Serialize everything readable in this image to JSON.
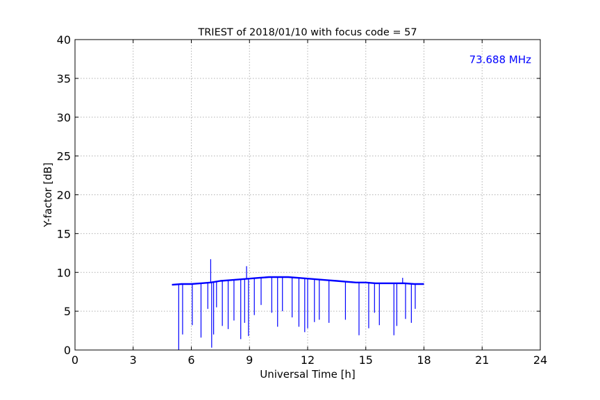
{
  "chart_data": {
    "type": "line",
    "title": "TRIEST of 2018/01/10 with focus code = 57",
    "xlabel": "Universal Time [h]",
    "ylabel": "Y-factor [dB]",
    "xlim": [
      0,
      24
    ],
    "ylim": [
      0,
      40
    ],
    "xticks": [
      0,
      3,
      6,
      9,
      12,
      15,
      18,
      21,
      24
    ],
    "yticks": [
      0,
      5,
      10,
      15,
      20,
      25,
      30,
      35,
      40
    ],
    "grid": true,
    "annotation": {
      "text": "73.688 MHz",
      "color": "#0000ff",
      "placement": "top-right"
    },
    "series": [
      {
        "color": "#0000ff",
        "x": [
          5.0,
          5.5,
          6.0,
          6.5,
          7.0,
          7.5,
          8.0,
          8.5,
          9.0,
          9.5,
          10.0,
          10.5,
          11.0,
          11.5,
          12.0,
          12.5,
          13.0,
          13.5,
          14.0,
          14.5,
          15.0,
          15.5,
          16.0,
          16.5,
          17.0,
          17.5,
          18.0
        ],
        "y": [
          8.4,
          8.5,
          8.5,
          8.6,
          8.7,
          8.9,
          9.0,
          9.1,
          9.2,
          9.3,
          9.4,
          9.4,
          9.4,
          9.3,
          9.2,
          9.1,
          9.0,
          8.9,
          8.8,
          8.7,
          8.7,
          8.6,
          8.6,
          8.6,
          8.6,
          8.5,
          8.5
        ],
        "dips": [
          [
            5.35,
            0.0
          ],
          [
            5.55,
            2.0
          ],
          [
            6.05,
            3.2
          ],
          [
            6.5,
            1.6
          ],
          [
            6.85,
            5.3
          ],
          [
            7.05,
            0.3
          ],
          [
            7.15,
            2.0
          ],
          [
            7.3,
            5.5
          ],
          [
            7.6,
            3.1
          ],
          [
            7.9,
            2.7
          ],
          [
            8.2,
            3.8
          ],
          [
            8.55,
            1.4
          ],
          [
            8.75,
            3.5
          ],
          [
            8.95,
            1.8
          ],
          [
            9.25,
            4.5
          ],
          [
            9.6,
            5.8
          ],
          [
            10.15,
            4.8
          ],
          [
            10.45,
            3.0
          ],
          [
            10.7,
            5.0
          ],
          [
            11.2,
            4.2
          ],
          [
            11.55,
            3.0
          ],
          [
            11.85,
            2.3
          ],
          [
            12.0,
            2.8
          ],
          [
            12.35,
            3.6
          ],
          [
            12.6,
            3.9
          ],
          [
            13.1,
            3.5
          ],
          [
            13.95,
            3.9
          ],
          [
            14.65,
            1.9
          ],
          [
            15.15,
            2.8
          ],
          [
            15.45,
            4.8
          ],
          [
            15.7,
            3.2
          ],
          [
            16.45,
            1.9
          ],
          [
            16.6,
            3.1
          ],
          [
            17.05,
            4.0
          ],
          [
            17.35,
            3.5
          ],
          [
            17.55,
            5.3
          ]
        ],
        "spikes": [
          [
            7.0,
            11.7
          ],
          [
            8.85,
            10.8
          ],
          [
            16.9,
            9.3
          ]
        ]
      }
    ]
  }
}
